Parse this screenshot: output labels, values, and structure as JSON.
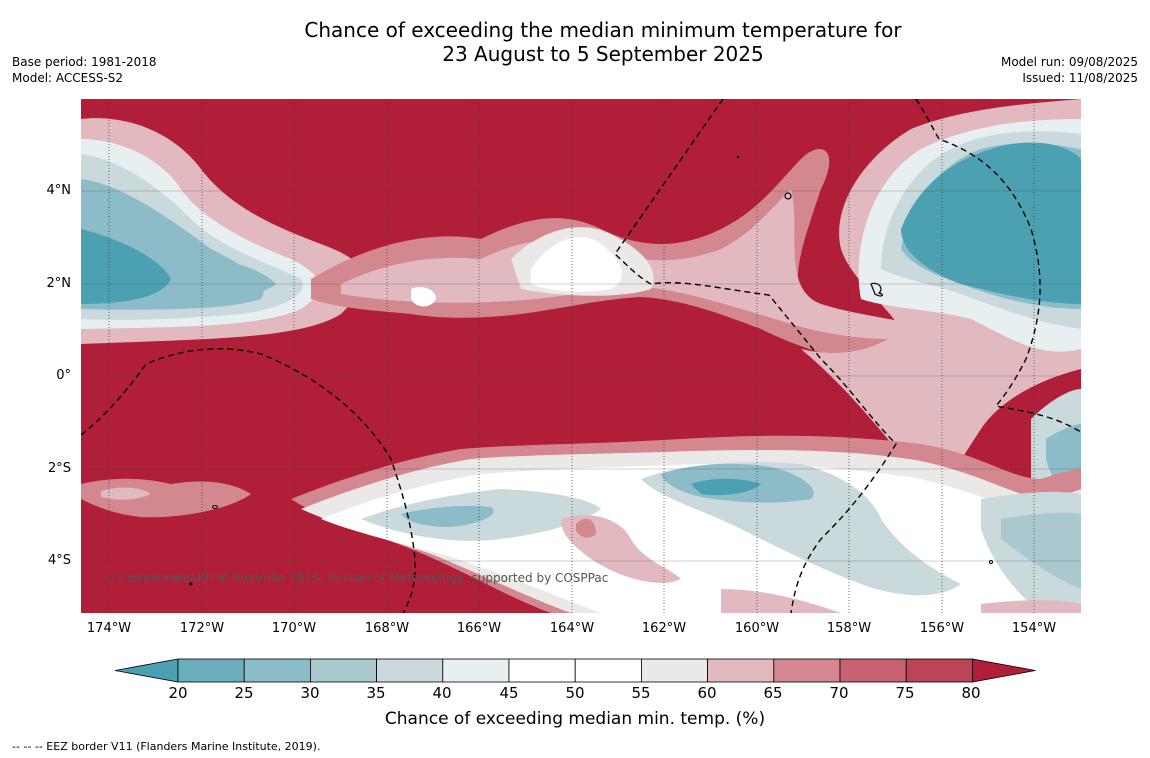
{
  "header": {
    "title_line1": "Chance of exceeding the median minimum temperature for",
    "title_line2": "23 August to 5 September 2025",
    "base_period": "Base period: 1981-2018",
    "model": "Model: ACCESS-S2",
    "model_run": "Model run: 09/08/2025",
    "issued": "Issued: 11/08/2025"
  },
  "map": {
    "copyright": "© Commonwealth of Australia 2025, Bureau of Meteorology, supported by COSPPac",
    "lat_labels": [
      "4°N",
      "2°N",
      "0°",
      "2°S",
      "4°S"
    ],
    "lon_labels": [
      "174°W",
      "172°W",
      "170°W",
      "168°W",
      "166°W",
      "164°W",
      "162°W",
      "160°W",
      "158°W",
      "156°W",
      "154°W"
    ],
    "colors": {
      "background_hot": "#b01e38"
    }
  },
  "colorbar": {
    "title": "Chance of exceeding median min. temp. (%)",
    "ticks": [
      "20",
      "25",
      "30",
      "35",
      "40",
      "45",
      "50",
      "55",
      "60",
      "65",
      "70",
      "75",
      "80"
    ],
    "colors": [
      "#4ba0b1",
      "#6aaebd",
      "#8cbcc7",
      "#aac9cf",
      "#cad9dc",
      "#e8eff1",
      "#ffffff",
      "#ffffff",
      "#ebe8e8",
      "#e1b9bf",
      "#d3878f",
      "#c7626f",
      "#bd4455",
      "#b01e38"
    ]
  },
  "footer": {
    "legend": "--  --  -- EEZ border V11 (Flanders Marine Institute, 2019)."
  }
}
